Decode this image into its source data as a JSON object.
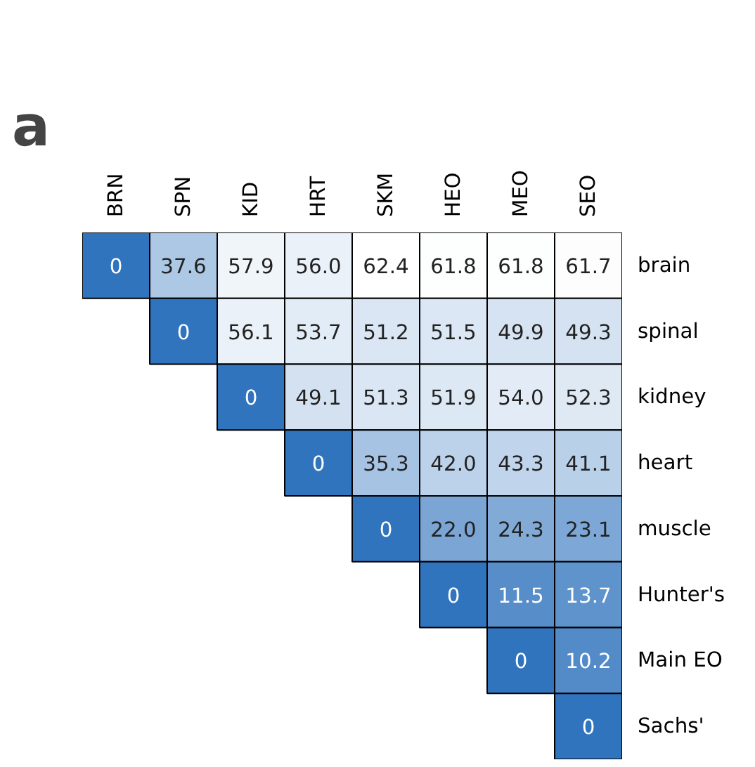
{
  "chart_data": {
    "type": "heatmap",
    "annotations": [
      "a"
    ],
    "categories": [
      "BRN",
      "SPN",
      "KID",
      "HRT",
      "SKM",
      "HEO",
      "MEO",
      "SEO"
    ],
    "y_categories": [
      "brain",
      "spinal",
      "kidney",
      "heart",
      "muscle",
      "Hunter's",
      "Main EO",
      "Sachs'"
    ],
    "cells": [
      [
        0,
        37.6,
        57.9,
        56.0,
        62.4,
        61.8,
        61.8,
        61.7
      ],
      [
        null,
        0,
        56.1,
        53.7,
        51.2,
        51.5,
        49.9,
        49.3
      ],
      [
        null,
        null,
        0,
        49.1,
        51.3,
        51.9,
        54.0,
        52.3
      ],
      [
        null,
        null,
        null,
        0,
        35.3,
        42.0,
        43.3,
        41.1
      ],
      [
        null,
        null,
        null,
        null,
        0,
        22.0,
        24.3,
        23.1
      ],
      [
        null,
        null,
        null,
        null,
        null,
        0,
        11.5,
        13.7
      ],
      [
        null,
        null,
        null,
        null,
        null,
        null,
        0,
        10.2
      ],
      [
        null,
        null,
        null,
        null,
        null,
        null,
        null,
        0
      ]
    ],
    "cell_labels": [
      [
        "0",
        "37.6",
        "57.9",
        "56.0",
        "62.4",
        "61.8",
        "61.8",
        "61.7"
      ],
      [
        null,
        "0",
        "56.1",
        "53.7",
        "51.2",
        "51.5",
        "49.9",
        "49.3"
      ],
      [
        null,
        null,
        "0",
        "49.1",
        "51.3",
        "51.9",
        "54.0",
        "52.3"
      ],
      [
        null,
        null,
        null,
        "0",
        "35.3",
        "42.0",
        "43.3",
        "41.1"
      ],
      [
        null,
        null,
        null,
        null,
        "0",
        "22.0",
        "24.3",
        "23.1"
      ],
      [
        null,
        null,
        null,
        null,
        null,
        "0",
        "11.5",
        "13.7"
      ],
      [
        null,
        null,
        null,
        null,
        null,
        null,
        "0",
        "10.2"
      ],
      [
        null,
        null,
        null,
        null,
        null,
        null,
        null,
        "0"
      ]
    ]
  }
}
